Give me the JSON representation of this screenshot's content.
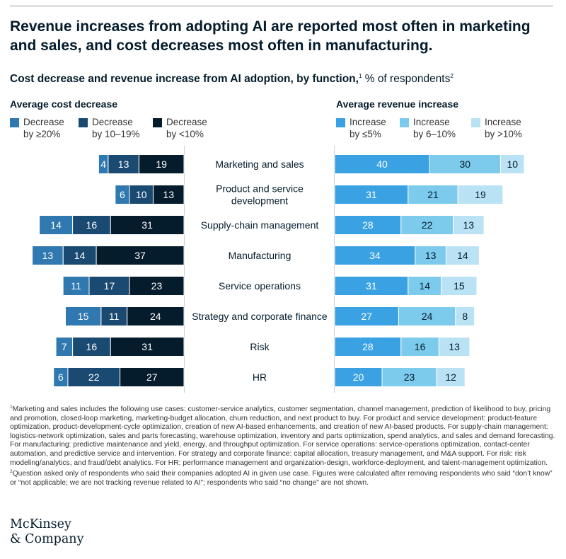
{
  "title": "Revenue increases from adopting AI are reported most often in marketing and sales, and cost decreases most often in manufacturing.",
  "subtitle": {
    "bold": "Cost decrease and revenue increase from AI adoption, by function,",
    "sup1": "1",
    "rest": " % of respondents",
    "sup2": "2"
  },
  "left_header": "Average cost decrease",
  "right_header": "Average revenue increase",
  "colors": {
    "cost_ge20": "#2f78b0",
    "cost_10_19": "#1a4a72",
    "cost_lt10": "#051c2c",
    "rev_le5": "#3aa2e3",
    "rev_6_10": "#7ccbed",
    "rev_gt10": "#b9e3f4",
    "divider": "#cfcfcf"
  },
  "legend": {
    "cost": [
      {
        "label": "Decrease\nby ≥20%",
        "color": "#2f78b0"
      },
      {
        "label": "Decrease\nby 10–19%",
        "color": "#1a4a72"
      },
      {
        "label": "Decrease\nby <10%",
        "color": "#051c2c"
      }
    ],
    "revenue": [
      {
        "label": "Increase\nby ≤5%",
        "color": "#3aa2e3"
      },
      {
        "label": "Increase\nby 6–10%",
        "color": "#7ccbed"
      },
      {
        "label": "Increase\nby >10%",
        "color": "#b9e3f4"
      }
    ]
  },
  "chart_data": {
    "type": "bar",
    "orientation": "horizontal",
    "stacked": true,
    "categories": [
      "Marketing and sales",
      "Product and service\ndevelopment",
      "Supply-chain management",
      "Manufacturing",
      "Service operations",
      "Strategy and corporate finance",
      "Risk",
      "HR"
    ],
    "cost_decrease": [
      {
        "name": "Decrease by ≥20%",
        "values": [
          4,
          6,
          14,
          13,
          11,
          15,
          7,
          6
        ]
      },
      {
        "name": "Decrease by 10–19%",
        "values": [
          13,
          10,
          16,
          14,
          17,
          11,
          16,
          22
        ]
      },
      {
        "name": "Decrease by <10%",
        "values": [
          19,
          13,
          31,
          37,
          23,
          24,
          31,
          27
        ]
      }
    ],
    "revenue_increase": [
      {
        "name": "Increase by ≤5%",
        "values": [
          40,
          31,
          28,
          34,
          31,
          27,
          28,
          20
        ]
      },
      {
        "name": "Increase by 6–10%",
        "values": [
          30,
          21,
          22,
          13,
          14,
          24,
          16,
          23
        ]
      },
      {
        "name": "Increase by >10%",
        "values": [
          10,
          19,
          13,
          14,
          15,
          8,
          13,
          12
        ]
      }
    ]
  },
  "footnotes": [
    {
      "sup": "1",
      "text": "Marketing and sales includes the following use cases: customer-service analytics, customer segmentation, channel management, prediction of likelihood to buy, pricing and promotion, closed-loop marketing, marketing-budget allocation, churn reduction, and next product to buy. For product and service development: product-feature optimization, product-development-cycle optimization, creation of new AI-based enhancements, and creation of new AI-based products. For supply-chain management: logistics-network optimization, sales and parts forecasting, warehouse optimization, inventory and parts optimization, spend analytics, and sales and demand forecasting. For manufacturing: predictive maintenance and yield, energy, and throughput optimization. For service operations: service-operations optimization, contact-center automation, and predictive service and intervention. For strategy and corporate finance: capital allocation, treasury management, and M&A support. For risk: risk modeling/analytics, and fraud/debt analytics. For HR: performance management and organization-design, workforce-deployment, and talent-management optimization."
    },
    {
      "sup": "2",
      "text": "Question asked only of respondents who said their companies adopted AI in given use case. Figures were calculated after removing respondents who said “don’t know” or “not applicable; we are not tracking revenue related to AI”; respondents who said “no change” are not shown."
    }
  ],
  "logo": "McKinsey\n& Company"
}
